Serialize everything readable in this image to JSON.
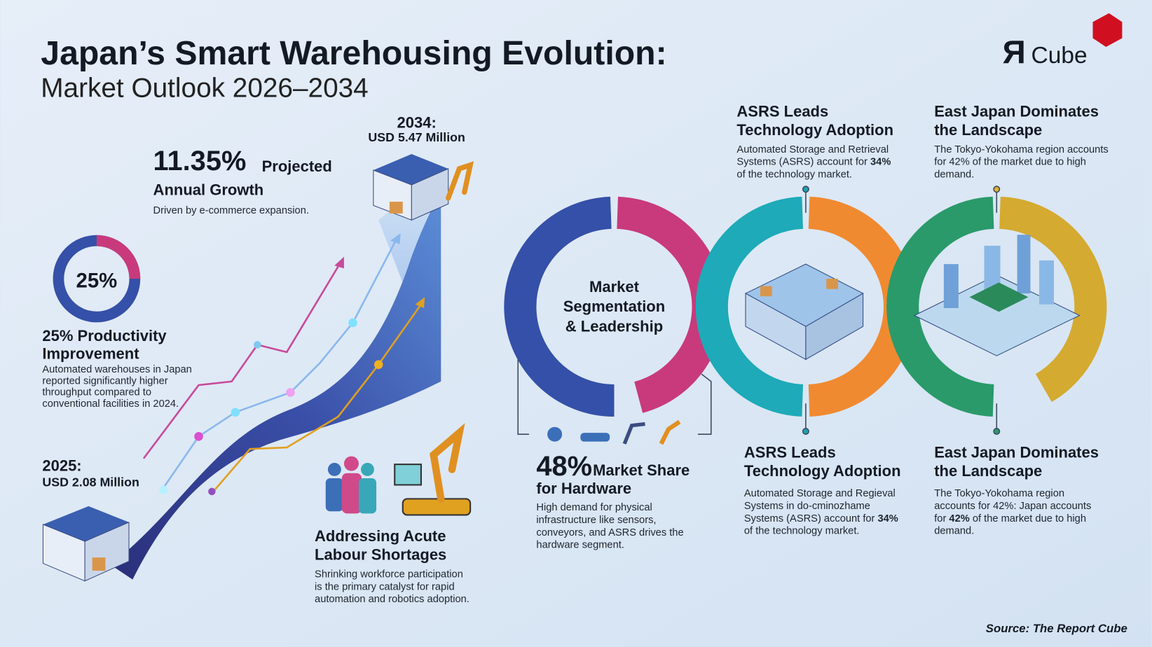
{
  "header": {
    "title": "Japan’s Smart Warehousing Evolution:",
    "subtitle": "Market Outlook 2026–2034"
  },
  "logo": {
    "mark": "Я",
    "text": "Cube"
  },
  "growth": {
    "rate": "11.35%",
    "rate_text": "Projected",
    "line2": "Annual Growth",
    "note": "Driven by e-commerce expansion."
  },
  "end_point": {
    "year": "2034:",
    "value": "USD 5.47 Million"
  },
  "start_point": {
    "year": "2025:",
    "value": "USD 2.08 Million"
  },
  "productivity": {
    "ring_value": 25,
    "ring_label": "25%",
    "title": [
      "25% Productivity",
      "Improvement"
    ],
    "desc": [
      "Automated warehouses in Japan",
      "reported significantly higher",
      "throughput compared to",
      "conventional facilities in 2024."
    ]
  },
  "labour": {
    "title": [
      "Addressing Acute",
      "Labour Shortages"
    ],
    "desc": [
      "Shrinking workforce participation",
      "is the primary catalyst for rapid",
      "automation and robotics adoption."
    ]
  },
  "segmentation": {
    "title": [
      "Market",
      "Segmentation",
      "& Leadership"
    ]
  },
  "hardware": {
    "share": "48%",
    "share_text": "Market Share",
    "line2": "for Hardware",
    "desc": [
      "High demand for physical",
      "infrastructure like sensors,",
      "conveyors, and ASRS drives the",
      "hardware segment."
    ]
  },
  "asrs_top": {
    "title": [
      "ASRS Leads",
      "Technology Adoption"
    ],
    "desc": [
      "Automated Storage and Retrieval",
      [
        "Systems (ASRS) account for ",
        "34%"
      ],
      "of the technology market."
    ]
  },
  "east_top": {
    "title": [
      "East Japan Dominates",
      "the Landscape"
    ],
    "desc": [
      "The Tokyo-Yokohama region accounts",
      "for 42% of the market due to high",
      "demand."
    ]
  },
  "asrs_bottom": {
    "title": [
      "ASRS Leads",
      "Technology Adoption"
    ],
    "desc": [
      "Automated Storage and Regieval",
      "Systems in do-cminozhame",
      [
        "Systems (ASRS) account for ",
        "34%"
      ],
      "of the technology market."
    ]
  },
  "east_bottom": {
    "title": [
      "East Japan Dominates",
      "the Landscape"
    ],
    "desc": [
      "The Tokyo-Yokohama region",
      "accounts for 42%: Japan accounts",
      [
        "for ",
        "42%",
        " of the market due to high"
      ],
      "demand."
    ]
  },
  "source": "Source: The Report Cube"
}
